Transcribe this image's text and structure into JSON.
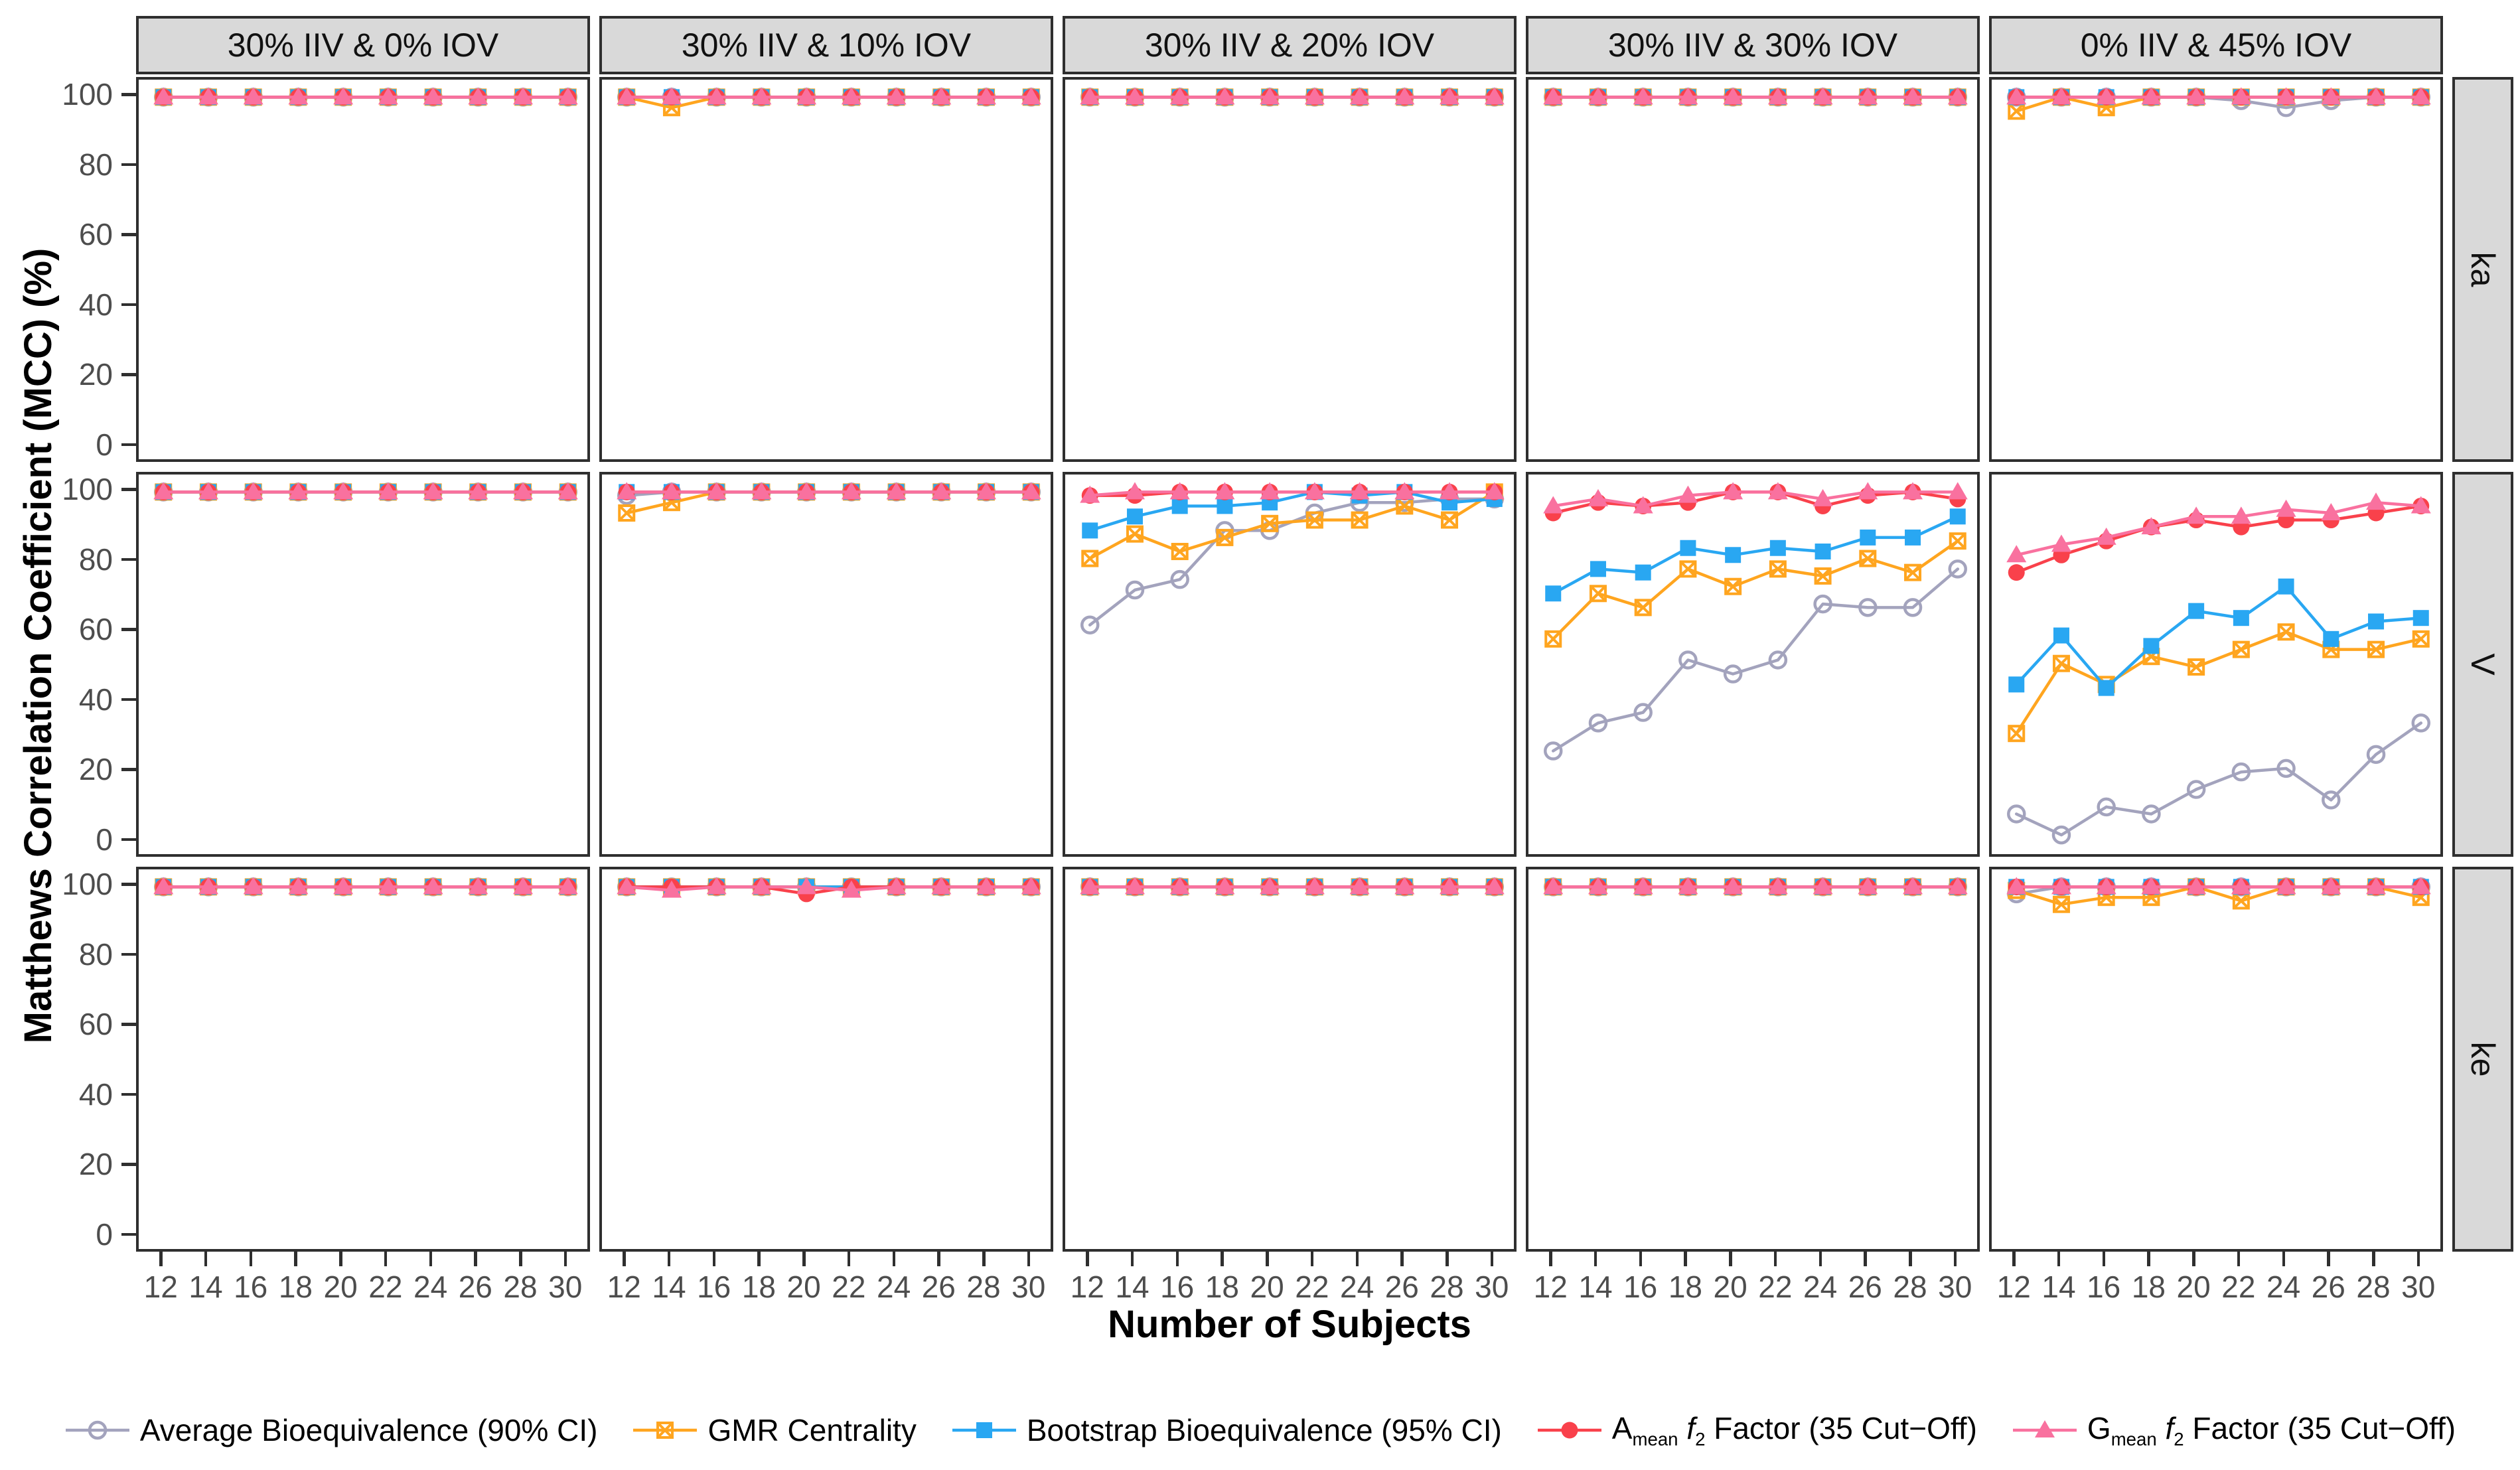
{
  "figure": {
    "colors": {
      "panel_border": "#2f2f2f",
      "strip_background": "#d9d9d9",
      "tick_label": "#4d4d4d",
      "axis_title": "#000000"
    }
  },
  "chart_data": {
    "type": "line",
    "x": [
      12,
      14,
      16,
      18,
      20,
      22,
      24,
      26,
      28,
      30
    ],
    "xlabel": "Number of Subjects",
    "ylabel": "Matthews Correlation Coefficient (MCC) (%)",
    "ylim": [
      0,
      100
    ],
    "y_ticks": [
      0,
      20,
      40,
      60,
      80,
      100
    ],
    "grid": "off",
    "legend_position": "bottom",
    "col_facets": [
      "30% IIV & 0% IOV",
      "30% IIV & 10% IOV",
      "30% IIV & 20% IOV",
      "30% IIV & 30% IOV",
      "0% IIV & 45% IOV"
    ],
    "row_facets": [
      "ka",
      "V",
      "ke"
    ],
    "series": [
      {
        "id": "abe",
        "label": "Average Bioequivalence (90% CI)",
        "label_parts": [
          {
            "t": "Average Bioequivalence (90% CI)"
          }
        ],
        "color": "#a3a3bd",
        "marker": "open-circle"
      },
      {
        "id": "gmr",
        "label": "GMR Centrality",
        "label_parts": [
          {
            "t": "GMR Centrality"
          }
        ],
        "color": "#ffa51f",
        "marker": "crossed-square"
      },
      {
        "id": "boot",
        "label": "Bootstrap Bioequivalence (95% CI)",
        "label_parts": [
          {
            "t": "Bootstrap Bioequivalence (95% CI)"
          }
        ],
        "color": "#29a7f2",
        "marker": "filled-square"
      },
      {
        "id": "amean",
        "label": "Amean f2 Factor (35 Cut−Off)",
        "label_parts": [
          {
            "t": "A"
          },
          {
            "t": "mean",
            "sub": true
          },
          {
            "t": " "
          },
          {
            "t": "f",
            "italic": true
          },
          {
            "t": "2",
            "sub": true
          },
          {
            "t": " Factor (35 Cut−Off)"
          }
        ],
        "color": "#f9414b",
        "marker": "filled-circle"
      },
      {
        "id": "gmean",
        "label": "Gmean f2 Factor (35 Cut−Off)",
        "label_parts": [
          {
            "t": "G"
          },
          {
            "t": "mean",
            "sub": true
          },
          {
            "t": " "
          },
          {
            "t": "f",
            "italic": true
          },
          {
            "t": "2",
            "sub": true
          },
          {
            "t": " Factor (35 Cut−Off)"
          }
        ],
        "color": "#f9719f",
        "marker": "filled-triangle"
      }
    ],
    "panels": {
      "ka": [
        {
          "abe": [
            100,
            100,
            100,
            100,
            100,
            100,
            100,
            100,
            100,
            100
          ],
          "gmr": [
            100,
            100,
            100,
            100,
            100,
            100,
            100,
            100,
            100,
            100
          ],
          "boot": [
            100,
            100,
            100,
            100,
            100,
            100,
            100,
            100,
            100,
            100
          ],
          "amean": [
            100,
            100,
            100,
            100,
            100,
            100,
            100,
            100,
            100,
            100
          ],
          "gmean": [
            100,
            100,
            100,
            100,
            100,
            100,
            100,
            100,
            100,
            100
          ]
        },
        {
          "abe": [
            100,
            100,
            100,
            100,
            100,
            100,
            100,
            100,
            100,
            100
          ],
          "gmr": [
            100,
            97,
            100,
            100,
            100,
            100,
            100,
            100,
            100,
            100
          ],
          "boot": [
            100,
            100,
            100,
            100,
            100,
            100,
            100,
            100,
            100,
            100
          ],
          "amean": [
            100,
            100,
            100,
            100,
            100,
            100,
            100,
            100,
            100,
            100
          ],
          "gmean": [
            100,
            100,
            100,
            100,
            100,
            100,
            100,
            100,
            100,
            100
          ]
        },
        {
          "abe": [
            100,
            100,
            100,
            100,
            100,
            100,
            100,
            100,
            100,
            100
          ],
          "gmr": [
            100,
            100,
            100,
            100,
            100,
            100,
            100,
            100,
            100,
            100
          ],
          "boot": [
            100,
            100,
            100,
            100,
            100,
            100,
            100,
            100,
            100,
            100
          ],
          "amean": [
            100,
            100,
            100,
            100,
            100,
            100,
            100,
            100,
            100,
            100
          ],
          "gmean": [
            100,
            100,
            100,
            100,
            100,
            100,
            100,
            100,
            100,
            100
          ]
        },
        {
          "abe": [
            100,
            100,
            100,
            100,
            100,
            100,
            100,
            100,
            100,
            100
          ],
          "gmr": [
            100,
            100,
            100,
            100,
            100,
            100,
            100,
            100,
            100,
            100
          ],
          "boot": [
            100,
            100,
            100,
            100,
            100,
            100,
            100,
            100,
            100,
            100
          ],
          "amean": [
            100,
            100,
            100,
            100,
            100,
            100,
            100,
            100,
            100,
            100
          ],
          "gmean": [
            100,
            100,
            100,
            100,
            100,
            100,
            100,
            100,
            100,
            100
          ]
        },
        {
          "abe": [
            100,
            100,
            100,
            100,
            100,
            99,
            97,
            99,
            100,
            100
          ],
          "gmr": [
            96,
            100,
            97,
            100,
            100,
            100,
            100,
            100,
            100,
            100
          ],
          "boot": [
            100,
            100,
            100,
            100,
            100,
            100,
            100,
            100,
            100,
            100
          ],
          "amean": [
            100,
            100,
            100,
            100,
            100,
            100,
            100,
            100,
            100,
            100
          ],
          "gmean": [
            100,
            100,
            100,
            100,
            100,
            100,
            100,
            100,
            100,
            100
          ]
        }
      ],
      "V": [
        {
          "abe": [
            100,
            100,
            100,
            100,
            100,
            100,
            100,
            100,
            100,
            100
          ],
          "gmr": [
            100,
            100,
            100,
            100,
            100,
            100,
            100,
            100,
            100,
            100
          ],
          "boot": [
            100,
            100,
            100,
            100,
            100,
            100,
            100,
            100,
            100,
            100
          ],
          "amean": [
            100,
            100,
            100,
            100,
            100,
            100,
            100,
            100,
            100,
            100
          ],
          "gmean": [
            100,
            100,
            100,
            100,
            100,
            100,
            100,
            100,
            100,
            100
          ]
        },
        {
          "abe": [
            99,
            100,
            100,
            100,
            100,
            100,
            100,
            100,
            100,
            100
          ],
          "gmr": [
            94,
            97,
            100,
            100,
            100,
            100,
            100,
            100,
            100,
            100
          ],
          "boot": [
            100,
            100,
            100,
            100,
            100,
            100,
            100,
            100,
            100,
            100
          ],
          "amean": [
            100,
            100,
            100,
            100,
            100,
            100,
            100,
            100,
            100,
            100
          ],
          "gmean": [
            100,
            100,
            100,
            100,
            100,
            100,
            100,
            100,
            100,
            100
          ]
        },
        {
          "abe": [
            62,
            72,
            75,
            89,
            89,
            94,
            97,
            97,
            98,
            98
          ],
          "gmr": [
            81,
            88,
            83,
            87,
            91,
            92,
            92,
            96,
            92,
            100
          ],
          "boot": [
            89,
            93,
            96,
            96,
            97,
            100,
            99,
            100,
            97,
            98
          ],
          "amean": [
            99,
            99,
            100,
            100,
            100,
            100,
            100,
            100,
            100,
            100
          ],
          "gmean": [
            99,
            100,
            100,
            100,
            100,
            100,
            100,
            100,
            100,
            100
          ]
        },
        {
          "abe": [
            26,
            34,
            37,
            52,
            48,
            52,
            68,
            67,
            67,
            78
          ],
          "gmr": [
            58,
            71,
            67,
            78,
            73,
            78,
            76,
            81,
            77,
            86
          ],
          "boot": [
            71,
            78,
            77,
            84,
            82,
            84,
            83,
            87,
            87,
            93
          ],
          "amean": [
            94,
            97,
            96,
            97,
            100,
            100,
            96,
            99,
            100,
            98
          ],
          "gmean": [
            96,
            98,
            96,
            99,
            100,
            100,
            98,
            100,
            100,
            100
          ]
        },
        {
          "abe": [
            8,
            2,
            10,
            8,
            15,
            20,
            21,
            12,
            25,
            34
          ],
          "gmr": [
            31,
            51,
            45,
            53,
            50,
            55,
            60,
            55,
            55,
            58
          ],
          "boot": [
            45,
            59,
            44,
            56,
            66,
            64,
            73,
            58,
            63,
            64
          ],
          "amean": [
            77,
            82,
            86,
            90,
            92,
            90,
            92,
            92,
            94,
            96
          ],
          "gmean": [
            82,
            85,
            87,
            90,
            93,
            93,
            95,
            94,
            97,
            96
          ]
        }
      ],
      "ke": [
        {
          "abe": [
            100,
            100,
            100,
            100,
            100,
            100,
            100,
            100,
            100,
            100
          ],
          "gmr": [
            100,
            100,
            100,
            100,
            100,
            100,
            100,
            100,
            100,
            100
          ],
          "boot": [
            100,
            100,
            100,
            100,
            100,
            100,
            100,
            100,
            100,
            100
          ],
          "amean": [
            100,
            100,
            100,
            100,
            100,
            100,
            100,
            100,
            100,
            100
          ],
          "gmean": [
            100,
            100,
            100,
            100,
            100,
            100,
            100,
            100,
            100,
            100
          ]
        },
        {
          "abe": [
            100,
            100,
            100,
            100,
            100,
            100,
            100,
            100,
            100,
            100
          ],
          "gmr": [
            100,
            100,
            100,
            100,
            100,
            100,
            100,
            100,
            100,
            100
          ],
          "boot": [
            100,
            100,
            100,
            100,
            100,
            100,
            100,
            100,
            100,
            100
          ],
          "amean": [
            100,
            100,
            100,
            100,
            98,
            100,
            100,
            100,
            100,
            100
          ],
          "gmean": [
            100,
            99,
            100,
            100,
            100,
            99,
            100,
            100,
            100,
            100
          ]
        },
        {
          "abe": [
            100,
            100,
            100,
            100,
            100,
            100,
            100,
            100,
            100,
            100
          ],
          "gmr": [
            100,
            100,
            100,
            100,
            100,
            100,
            100,
            100,
            100,
            100
          ],
          "boot": [
            100,
            100,
            100,
            100,
            100,
            100,
            100,
            100,
            100,
            100
          ],
          "amean": [
            100,
            100,
            100,
            100,
            100,
            100,
            100,
            100,
            100,
            100
          ],
          "gmean": [
            100,
            100,
            100,
            100,
            100,
            100,
            100,
            100,
            100,
            100
          ]
        },
        {
          "abe": [
            100,
            100,
            100,
            100,
            100,
            100,
            100,
            100,
            100,
            100
          ],
          "gmr": [
            100,
            100,
            100,
            100,
            100,
            100,
            100,
            100,
            100,
            100
          ],
          "boot": [
            100,
            100,
            100,
            100,
            100,
            100,
            100,
            100,
            100,
            100
          ],
          "amean": [
            100,
            100,
            100,
            100,
            100,
            100,
            100,
            100,
            100,
            100
          ],
          "gmean": [
            100,
            100,
            100,
            100,
            100,
            100,
            100,
            100,
            100,
            100
          ]
        },
        {
          "abe": [
            98,
            100,
            100,
            100,
            100,
            100,
            100,
            100,
            100,
            100
          ],
          "gmr": [
            99,
            95,
            97,
            97,
            100,
            96,
            100,
            100,
            100,
            97
          ],
          "boot": [
            100,
            100,
            100,
            100,
            100,
            100,
            100,
            100,
            100,
            100
          ],
          "amean": [
            100,
            100,
            100,
            100,
            100,
            100,
            100,
            100,
            100,
            100
          ],
          "gmean": [
            100,
            100,
            100,
            100,
            100,
            100,
            100,
            100,
            100,
            100
          ]
        }
      ]
    }
  }
}
